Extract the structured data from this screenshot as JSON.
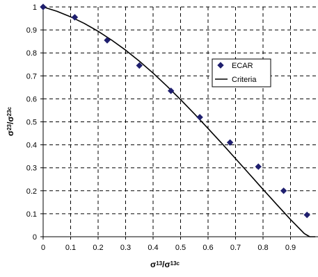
{
  "chart_data": {
    "type": "scatter",
    "xlabel": {
      "base1": "σ",
      "sub1": "13",
      "slash": "/",
      "base2": "σ",
      "sub2": "13c"
    },
    "ylabel": {
      "base1": "σ",
      "sub1": "23",
      "slash": "/",
      "base2": "σ",
      "sub2": "23c"
    },
    "xlim": [
      0,
      1
    ],
    "ylim": [
      0,
      1
    ],
    "x_ticks": [
      "0",
      "0.1",
      "0.2",
      "0.3",
      "0.4",
      "0.5",
      "0.6",
      "0.7",
      "0.8",
      "0.9"
    ],
    "y_ticks": [
      "0",
      "0.1",
      "0.2",
      "0.3",
      "0.4",
      "0.5",
      "0.6",
      "0.7",
      "0.8",
      "0.9",
      "1"
    ],
    "grid": true,
    "legend_position": "right",
    "series": [
      {
        "name": "ECAR",
        "kind": "markers",
        "marker": "diamond",
        "color": "#1f1f6e",
        "x": [
          0.0,
          0.115,
          0.233,
          0.35,
          0.465,
          0.57,
          0.68,
          0.783,
          0.875,
          0.96
        ],
        "y": [
          1.0,
          0.955,
          0.855,
          0.745,
          0.635,
          0.52,
          0.41,
          0.305,
          0.2,
          0.095
        ]
      },
      {
        "name": "Criteria",
        "kind": "line",
        "color": "#000000",
        "x": [
          0.0,
          0.05,
          0.1,
          0.15,
          0.2,
          0.25,
          0.3,
          0.35,
          0.4,
          0.45,
          0.5,
          0.55,
          0.6,
          0.65,
          0.7,
          0.75,
          0.8,
          0.85,
          0.9,
          0.95,
          0.97,
          0.99
        ],
        "y": [
          1.0,
          0.981,
          0.957,
          0.928,
          0.894,
          0.855,
          0.812,
          0.764,
          0.712,
          0.656,
          0.597,
          0.535,
          0.471,
          0.406,
          0.34,
          0.273,
          0.206,
          0.14,
          0.075,
          0.014,
          0.0,
          0.0
        ]
      }
    ]
  }
}
